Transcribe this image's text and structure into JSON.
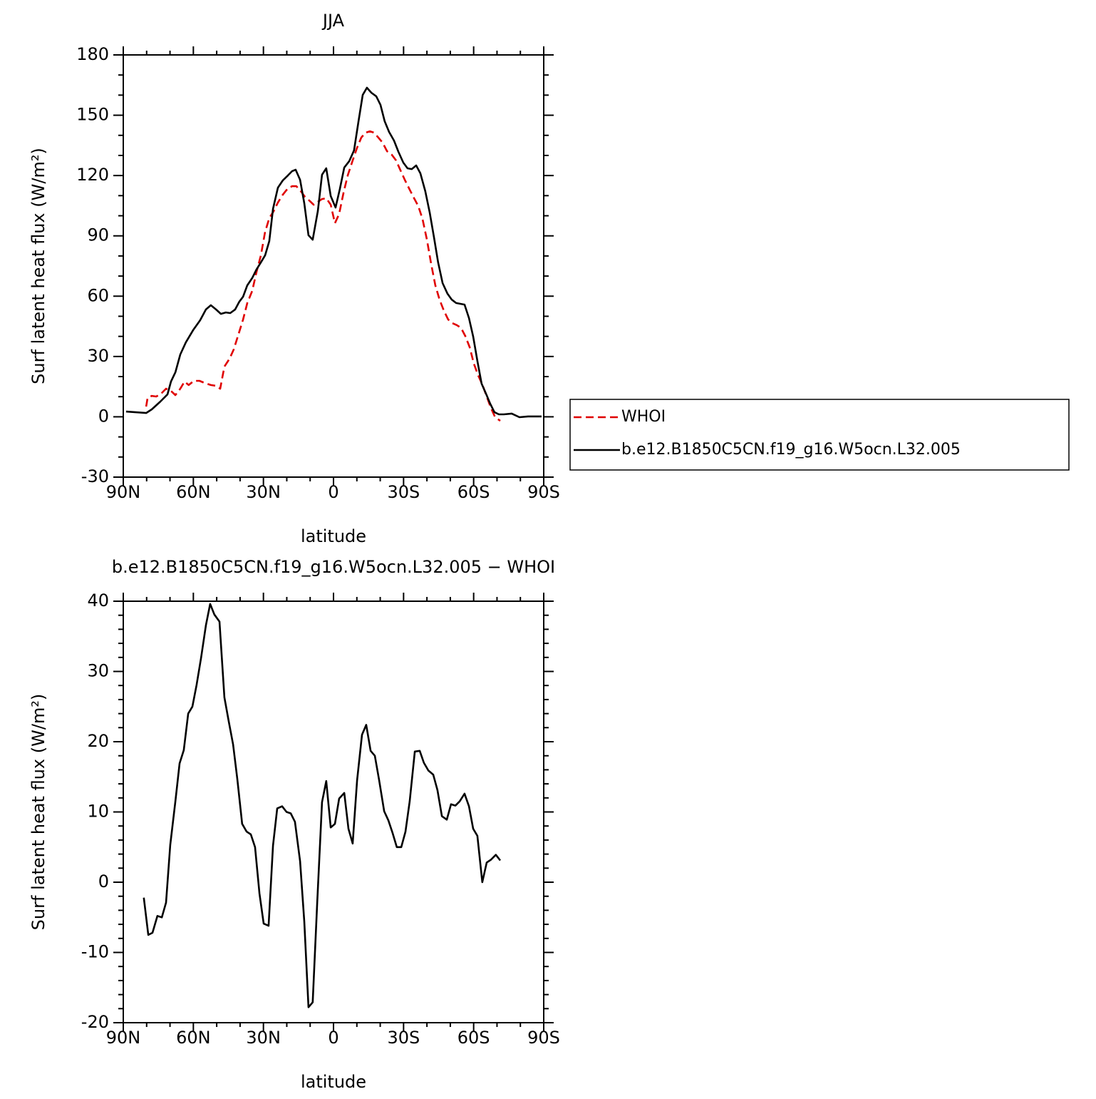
{
  "chart_data": [
    {
      "type": "line",
      "title": "JJA",
      "xlabel": "latitude",
      "ylabel": "Surf latent heat flux (W/m²)",
      "xlim": [
        90,
        -90
      ],
      "ylim": [
        -30,
        180
      ],
      "xticks": [
        {
          "value": 90,
          "label": "90N"
        },
        {
          "value": 60,
          "label": "60N"
        },
        {
          "value": 30,
          "label": "30N"
        },
        0,
        {
          "value": -30,
          "label": "30S"
        },
        {
          "value": -60,
          "label": "60S"
        },
        {
          "value": -90,
          "label": "90S"
        }
      ],
      "yticks": [
        -30,
        0,
        30,
        60,
        90,
        120,
        150,
        180
      ],
      "xminorticks": [
        80,
        70,
        50,
        40,
        20,
        10,
        -10,
        -20,
        -40,
        -50,
        -70,
        -80
      ],
      "yminorticks": [
        -20,
        -10,
        10,
        20,
        40,
        50,
        70,
        80,
        100,
        110,
        130,
        140,
        160,
        170
      ],
      "legend": true,
      "series": [
        {
          "name": "WHOI",
          "color": "#e00000",
          "dash": true,
          "x": [
            80.2,
            79.6,
            77.8,
            75.9,
            73.8,
            71.7,
            69.6,
            67.7,
            65.6,
            63.8,
            62.0,
            59.8,
            57.4,
            55.1,
            52.5,
            50.3,
            48.5,
            46.7,
            44.5,
            42.7,
            40.6,
            38.7,
            36.9,
            34.8,
            33.0,
            31.1,
            29.3,
            27.5,
            25.6,
            23.8,
            21.7,
            19.5,
            17.7,
            15.9,
            14.0,
            12.2,
            10.4,
            8.5,
            6.7,
            4.9,
            3.1,
            1.2,
            -0.6,
            -2.4,
            -4.3,
            -6.1,
            -8.2,
            -10.1,
            -11.9,
            -13.7,
            -15.6,
            -17.4,
            -19.2,
            -21.0,
            -22.9,
            -25.0,
            -26.8,
            -28.7,
            -30.5,
            -32.6,
            -34.5,
            -36.3,
            -38.1,
            -40.0,
            -41.8,
            -43.6,
            -45.4,
            -47.3,
            -49.1,
            -50.9,
            -52.8,
            -54.6,
            -56.4,
            -58.3,
            -60.1,
            -61.9,
            -63.7,
            -65.6,
            -67.4,
            -69.2,
            -71.4
          ],
          "values": [
            5.1,
            9.4,
            10.4,
            10.1,
            11.5,
            14.0,
            12.9,
            10.8,
            14.0,
            17.5,
            15.8,
            17.9,
            17.9,
            16.8,
            15.8,
            15.4,
            14.0,
            25.0,
            28.9,
            33.5,
            41.3,
            48.4,
            56.6,
            62.6,
            71.8,
            80.3,
            92.0,
            98.8,
            102.3,
            106.6,
            110.5,
            113.7,
            114.7,
            114.7,
            112.2,
            109.4,
            107.6,
            105.5,
            106.9,
            108.3,
            108.7,
            105.5,
            96.3,
            100.9,
            111.5,
            120.1,
            127.5,
            133.9,
            138.9,
            141.3,
            142.0,
            141.3,
            138.9,
            136.4,
            132.1,
            130.3,
            127.5,
            122.5,
            117.9,
            113.0,
            108.7,
            104.8,
            98.4,
            88.1,
            76.1,
            65.4,
            58.3,
            52.7,
            48.4,
            46.6,
            45.6,
            44.2,
            40.2,
            34.6,
            26.4,
            20.7,
            16.1,
            10.1,
            4.4,
            -0.2,
            -2.0
          ]
        },
        {
          "name": "b.e12.B1850C5CN.f19_g16.W5ocn.L32.005",
          "color": "#000000",
          "dash": false,
          "x": [
            88.8,
            80.2,
            77.8,
            74.1,
            71.1,
            69.6,
            67.7,
            65.6,
            63.2,
            60.1,
            57.1,
            54.6,
            52.5,
            50.3,
            48.2,
            46.1,
            44.2,
            42.1,
            40.3,
            38.7,
            36.9,
            34.8,
            33.0,
            31.1,
            29.3,
            27.5,
            25.9,
            23.8,
            21.7,
            19.5,
            17.7,
            16.2,
            14.3,
            12.5,
            10.7,
            8.9,
            6.7,
            4.9,
            3.1,
            1.2,
            -0.9,
            -2.7,
            -4.6,
            -6.7,
            -8.8,
            -10.7,
            -12.5,
            -14.3,
            -16.2,
            -18.3,
            -20.1,
            -21.9,
            -23.8,
            -25.9,
            -27.8,
            -29.9,
            -31.7,
            -33.5,
            -35.4,
            -37.2,
            -39.3,
            -41.2,
            -43.0,
            -44.8,
            -46.7,
            -48.8,
            -50.6,
            -52.5,
            -54.3,
            -56.1,
            -58.0,
            -59.8,
            -61.6,
            -63.4,
            -65.3,
            -67.1,
            -68.9,
            -70.8,
            -72.9,
            -76.3,
            -79.6,
            -83.3,
            -89.1
          ],
          "values": [
            2.6,
            1.9,
            3.7,
            7.6,
            11.1,
            17.5,
            22.1,
            31.0,
            37.0,
            43.1,
            48.0,
            53.4,
            55.5,
            53.4,
            51.2,
            51.9,
            51.6,
            53.4,
            57.3,
            59.7,
            65.4,
            69.0,
            73.2,
            76.8,
            80.3,
            87.4,
            103.4,
            114.0,
            117.6,
            120.1,
            122.2,
            122.9,
            117.9,
            106.2,
            90.3,
            88.1,
            102.3,
            120.4,
            123.6,
            109.8,
            104.1,
            113.3,
            124.0,
            127.1,
            132.5,
            147.0,
            160.1,
            163.7,
            161.2,
            159.4,
            155.2,
            147.0,
            141.7,
            137.4,
            131.8,
            126.4,
            123.6,
            123.2,
            125.0,
            121.1,
            112.2,
            101.6,
            89.5,
            76.8,
            66.5,
            61.2,
            58.3,
            56.6,
            56.2,
            55.8,
            49.1,
            39.9,
            27.8,
            16.5,
            11.5,
            6.5,
            2.3,
            1.2,
            1.2,
            1.6,
            -0.2,
            0.2,
            0.2
          ]
        }
      ]
    },
    {
      "type": "line",
      "title": "b.e12.B1850C5CN.f19_g16.W5ocn.L32.005 − WHOI",
      "xlabel": "latitude",
      "ylabel": "Surf latent heat flux (W/m²)",
      "xlim": [
        90,
        -90
      ],
      "ylim": [
        -20,
        40
      ],
      "xticks": [
        {
          "value": 90,
          "label": "90N"
        },
        {
          "value": 60,
          "label": "60N"
        },
        {
          "value": 30,
          "label": "30N"
        },
        0,
        {
          "value": -30,
          "label": "30S"
        },
        {
          "value": -60,
          "label": "60S"
        },
        {
          "value": -90,
          "label": "90S"
        }
      ],
      "yticks": [
        -20,
        -10,
        0,
        10,
        20,
        30,
        40
      ],
      "xminorticks": [
        80,
        70,
        50,
        40,
        20,
        10,
        -10,
        -20,
        -40,
        -50,
        -70,
        -80
      ],
      "yminorticks": [
        -18,
        -16,
        -14,
        -12,
        -8,
        -6,
        -4,
        -2,
        2,
        4,
        6,
        8,
        12,
        14,
        16,
        18,
        22,
        24,
        26,
        28,
        32,
        34,
        36,
        38
      ],
      "legend": false,
      "series": [
        {
          "color": "#000000",
          "dash": false,
          "x": [
            81.2,
            79.3,
            77.5,
            75.4,
            73.5,
            71.7,
            69.9,
            67.7,
            65.9,
            64.1,
            62.2,
            60.4,
            58.6,
            56.7,
            54.6,
            52.8,
            51.0,
            48.8,
            46.7,
            44.9,
            43.0,
            41.2,
            39.1,
            37.2,
            35.4,
            33.6,
            31.7,
            29.9,
            27.8,
            25.9,
            24.1,
            22.0,
            20.1,
            18.3,
            16.5,
            14.3,
            12.5,
            10.7,
            8.9,
            7.0,
            4.9,
            3.1,
            1.2,
            -0.6,
            -2.4,
            -4.6,
            -6.4,
            -8.2,
            -10.1,
            -12.2,
            -14.0,
            -15.9,
            -17.7,
            -19.5,
            -21.7,
            -23.5,
            -25.3,
            -27.1,
            -29.0,
            -30.8,
            -32.6,
            -34.8,
            -36.9,
            -38.7,
            -40.6,
            -42.7,
            -44.5,
            -46.4,
            -48.5,
            -50.3,
            -52.2,
            -54.0,
            -56.1,
            -58.0,
            -59.8,
            -61.6,
            -63.7,
            -65.6,
            -67.4,
            -69.5,
            -71.4
          ],
          "values": [
            -2.2,
            -7.5,
            -7.2,
            -4.8,
            -5.0,
            -2.9,
            5.3,
            11.5,
            16.9,
            18.8,
            24.0,
            25.0,
            28.1,
            31.9,
            36.6,
            39.6,
            38.1,
            37.1,
            26.3,
            23.0,
            19.6,
            14.7,
            8.3,
            7.2,
            6.8,
            5.0,
            -1.6,
            -5.9,
            -6.2,
            5.2,
            10.5,
            10.8,
            10.0,
            9.8,
            8.6,
            3.0,
            -5.6,
            -17.8,
            -17.1,
            -3.0,
            11.4,
            14.4,
            7.8,
            8.3,
            11.9,
            12.7,
            7.6,
            5.5,
            14.5,
            21.0,
            22.4,
            18.7,
            18.0,
            14.6,
            10.1,
            8.8,
            7.0,
            5.0,
            5.0,
            7.2,
            11.5,
            18.6,
            18.7,
            17.0,
            15.9,
            15.3,
            13.1,
            9.4,
            8.9,
            11.1,
            10.9,
            11.5,
            12.6,
            10.8,
            7.6,
            6.6,
            0.0,
            2.8,
            3.2,
            3.9,
            3.1
          ]
        }
      ]
    }
  ]
}
